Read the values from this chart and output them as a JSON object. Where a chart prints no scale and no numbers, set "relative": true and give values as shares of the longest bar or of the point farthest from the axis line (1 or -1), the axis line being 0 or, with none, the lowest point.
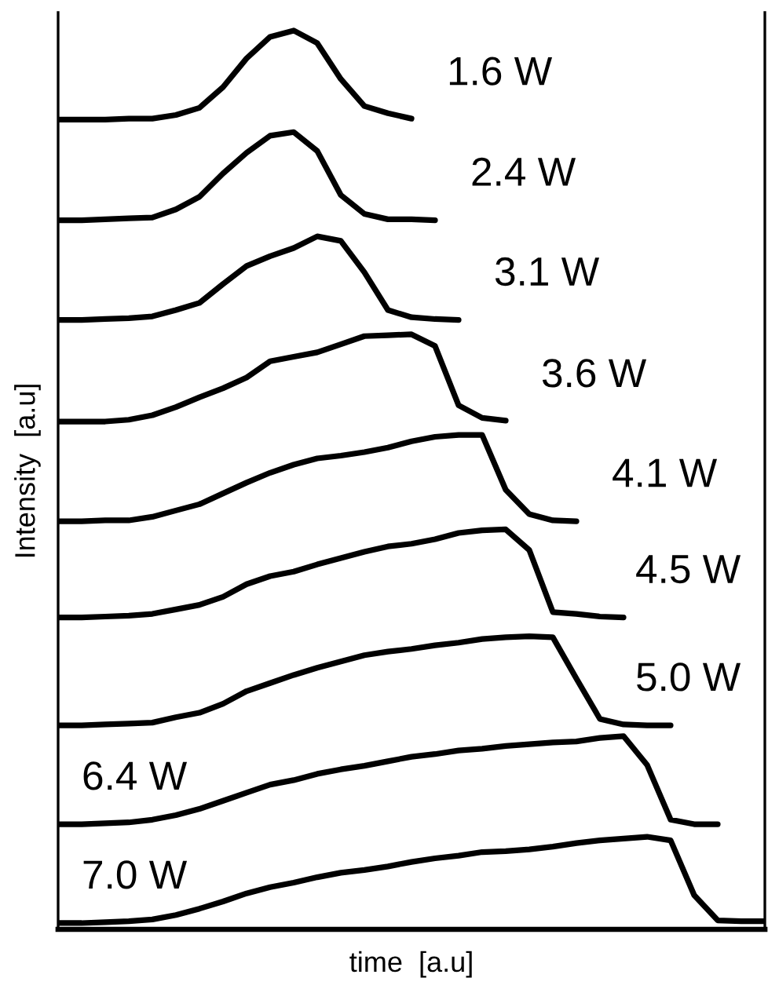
{
  "chart_data": {
    "type": "line",
    "relative": true,
    "xlabel": "time  [a.u]",
    "ylabel": "Intensity  [a.u]",
    "marker": "none",
    "line_style": "solid",
    "categories": [
      null,
      null,
      null,
      null,
      null,
      null,
      null,
      null,
      null,
      null,
      null,
      null,
      null,
      null,
      null,
      null,
      null,
      null,
      null,
      null,
      null,
      null,
      null,
      null,
      null,
      null,
      null,
      null,
      null,
      null,
      null
    ],
    "series": [
      {
        "name": "1.6 W",
        "color": "#000000",
        "values": [
          0.901,
          0.901,
          0.901,
          0.902,
          0.902,
          0.906,
          0.914,
          0.937,
          0.969,
          0.993,
          1.0,
          0.986,
          0.946,
          0.916,
          0.908,
          0.902,
          null,
          null,
          null,
          null,
          null,
          null,
          null,
          null,
          null,
          null,
          null,
          null,
          null,
          null,
          null
        ]
      },
      {
        "name": "2.4 W",
        "color": "#000000",
        "values": [
          0.789,
          0.789,
          0.79,
          0.791,
          0.792,
          0.801,
          0.815,
          0.841,
          0.864,
          0.883,
          0.887,
          0.866,
          0.817,
          0.796,
          0.79,
          0.79,
          0.789,
          null,
          null,
          null,
          null,
          null,
          null,
          null,
          null,
          null,
          null,
          null,
          null,
          null,
          null
        ]
      },
      {
        "name": "3.1 W",
        "color": "#000000",
        "values": [
          0.678,
          0.678,
          0.679,
          0.68,
          0.682,
          0.689,
          0.697,
          0.718,
          0.738,
          0.749,
          0.758,
          0.771,
          0.766,
          0.731,
          0.689,
          0.681,
          0.679,
          0.678,
          null,
          null,
          null,
          null,
          null,
          null,
          null,
          null,
          null,
          null,
          null,
          null,
          null
        ]
      },
      {
        "name": "3.6 W",
        "color": "#000000",
        "values": [
          0.565,
          0.565,
          0.565,
          0.567,
          0.572,
          0.581,
          0.592,
          0.602,
          0.614,
          0.632,
          0.637,
          0.642,
          0.651,
          0.66,
          0.661,
          0.662,
          0.649,
          0.583,
          0.569,
          0.566,
          null,
          null,
          null,
          null,
          null,
          null,
          null,
          null,
          null,
          null,
          null
        ]
      },
      {
        "name": "4.1 W",
        "color": "#000000",
        "values": [
          0.454,
          0.454,
          0.455,
          0.455,
          0.459,
          0.466,
          0.473,
          0.485,
          0.497,
          0.508,
          0.517,
          0.524,
          0.527,
          0.531,
          0.536,
          0.543,
          0.548,
          0.55,
          0.55,
          0.489,
          0.462,
          0.455,
          0.454,
          null,
          null,
          null,
          null,
          null,
          null,
          null,
          null
        ]
      },
      {
        "name": "4.5 W",
        "color": "#000000",
        "values": [
          0.347,
          0.347,
          0.348,
          0.349,
          0.351,
          0.356,
          0.361,
          0.37,
          0.384,
          0.393,
          0.398,
          0.406,
          0.413,
          0.42,
          0.426,
          0.429,
          0.434,
          0.441,
          0.444,
          0.445,
          0.422,
          0.353,
          0.351,
          0.348,
          0.347,
          null,
          null,
          null,
          null,
          null,
          null
        ]
      },
      {
        "name": "5.0 W",
        "color": "#000000",
        "values": [
          0.227,
          0.227,
          0.228,
          0.229,
          0.23,
          0.236,
          0.241,
          0.251,
          0.265,
          0.274,
          0.283,
          0.291,
          0.298,
          0.305,
          0.309,
          0.312,
          0.316,
          0.319,
          0.323,
          0.325,
          0.326,
          0.325,
          0.279,
          0.234,
          0.228,
          0.227,
          0.227,
          null,
          null,
          null,
          null
        ]
      },
      {
        "name": "6.4 W",
        "color": "#000000",
        "values": [
          0.117,
          0.117,
          0.118,
          0.119,
          0.122,
          0.127,
          0.134,
          0.143,
          0.152,
          0.161,
          0.166,
          0.173,
          0.178,
          0.182,
          0.187,
          0.192,
          0.195,
          0.199,
          0.201,
          0.204,
          0.206,
          0.208,
          0.209,
          0.213,
          0.215,
          0.183,
          0.122,
          0.117,
          0.117,
          null,
          null
        ]
      },
      {
        "name": "7.0 W",
        "color": "#000000",
        "values": [
          0.007,
          0.007,
          0.008,
          0.009,
          0.011,
          0.016,
          0.023,
          0.031,
          0.04,
          0.047,
          0.052,
          0.058,
          0.063,
          0.066,
          0.07,
          0.075,
          0.079,
          0.082,
          0.086,
          0.087,
          0.089,
          0.092,
          0.096,
          0.099,
          0.101,
          0.103,
          0.099,
          0.038,
          0.01,
          0.009,
          0.009
        ]
      }
    ]
  }
}
